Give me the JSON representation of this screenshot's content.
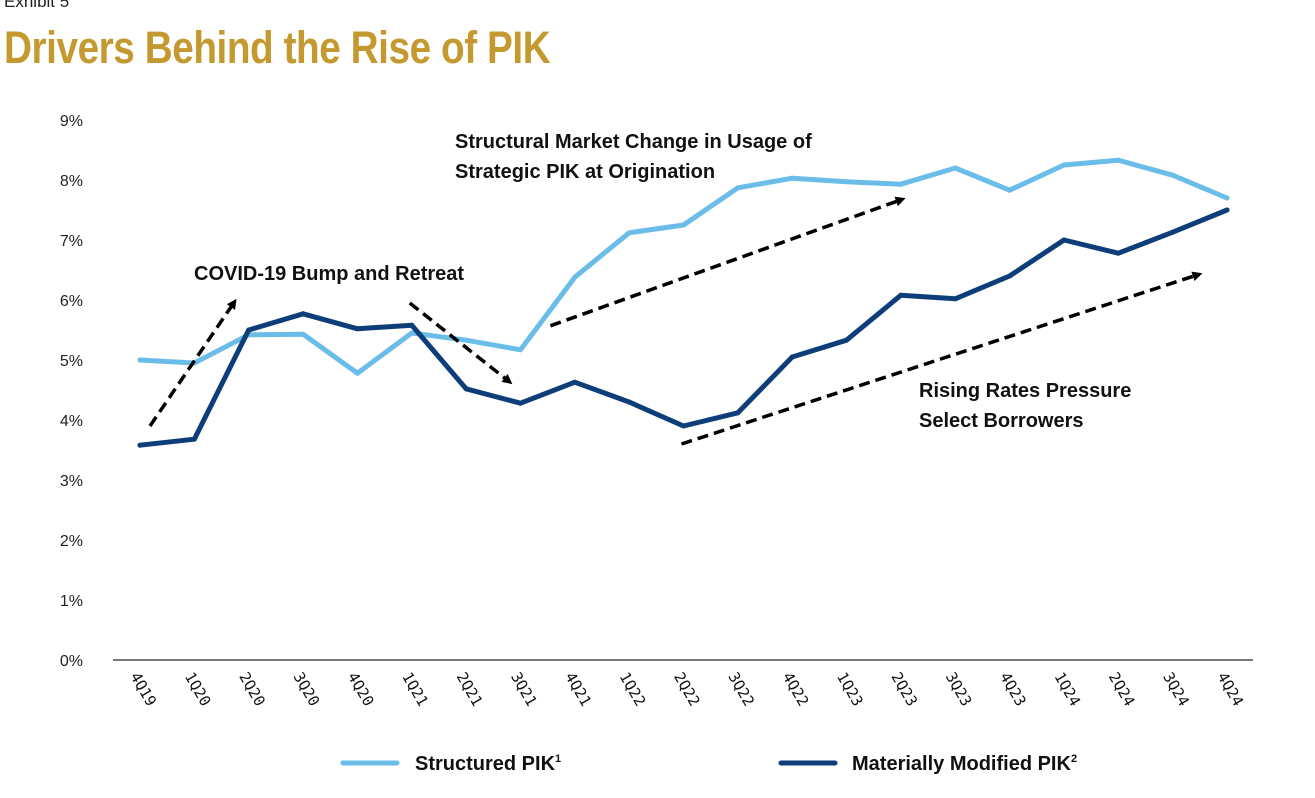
{
  "exhibit_label": "Exhibit 5",
  "title": "Drivers Behind the Rise of PIK",
  "colors": {
    "title": "#C4992F",
    "structured": "#6BBDE9",
    "modified": "#0D3E7A",
    "annotation": "#000000",
    "axis": "#777777"
  },
  "chart_data": {
    "type": "line",
    "title": "Drivers Behind the Rise of PIK",
    "xlabel": "",
    "ylabel": "",
    "ylim": [
      0,
      9
    ],
    "yticks": [
      "0%",
      "1%",
      "2%",
      "3%",
      "4%",
      "5%",
      "6%",
      "7%",
      "8%",
      "9%"
    ],
    "grid": false,
    "legend_position": "bottom",
    "x": [
      "4Q19",
      "1Q20",
      "2Q20",
      "3Q20",
      "4Q20",
      "1Q21",
      "2Q21",
      "3Q21",
      "4Q21",
      "1Q22",
      "2Q22",
      "3Q22",
      "4Q22",
      "1Q23",
      "2Q23",
      "3Q23",
      "4Q23",
      "1Q24",
      "2Q24",
      "3Q24",
      "4Q24"
    ],
    "series": [
      {
        "name": "Structured PIK",
        "superscript": "1",
        "color": "#6BBDE9",
        "values": [
          5.0,
          4.95,
          5.42,
          5.43,
          4.78,
          5.45,
          5.33,
          5.17,
          6.38,
          7.12,
          7.25,
          7.87,
          8.03,
          7.97,
          7.93,
          8.2,
          7.83,
          8.25,
          8.33,
          8.08,
          7.7
        ]
      },
      {
        "name": "Materially Modified PIK",
        "superscript": "2",
        "color": "#0D3E7A",
        "values": [
          3.58,
          3.68,
          5.5,
          5.77,
          5.52,
          5.58,
          4.52,
          4.28,
          4.63,
          4.3,
          3.9,
          4.12,
          5.05,
          5.33,
          6.08,
          6.02,
          6.4,
          7.0,
          6.78,
          7.13,
          7.5
        ]
      }
    ],
    "annotations": [
      {
        "text": [
          "COVID-19 Bump and Retreat"
        ],
        "arrows": [
          {
            "from": {
              "x": "4Q19",
              "y": 3.9
            },
            "to": {
              "x": "2Q20",
              "y": 5.95
            }
          },
          {
            "from": {
              "x": "1Q21",
              "y": 5.95
            },
            "to": {
              "x": "3Q21",
              "y": 4.65
            }
          }
        ]
      },
      {
        "text": [
          "Structural Market Change in Usage of",
          "Strategic PIK at Origination"
        ],
        "arrows": [
          {
            "from": {
              "x": "3Q21",
              "y": 5.57
            },
            "to": {
              "x": "2Q23",
              "y": 7.67
            }
          }
        ]
      },
      {
        "text": [
          "Rising Rates Pressure",
          "Select Borrowers"
        ],
        "arrows": [
          {
            "from": {
              "x": "2Q22",
              "y": 3.6
            },
            "to": {
              "x": "3Q24",
              "y": 6.42
            }
          }
        ]
      }
    ]
  }
}
